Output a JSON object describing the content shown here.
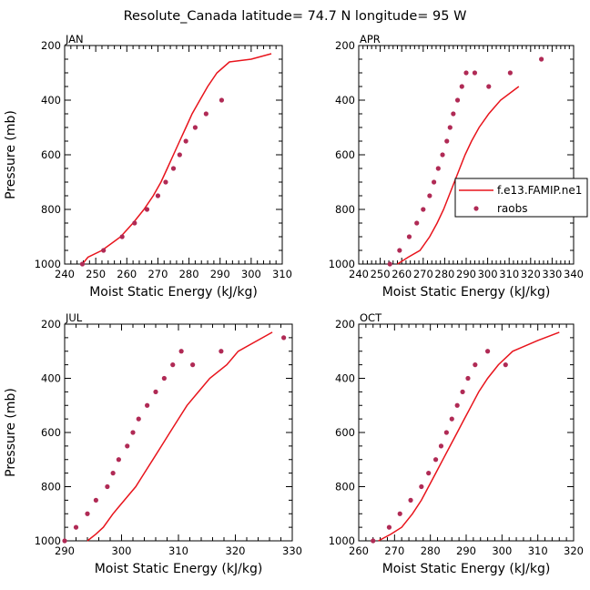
{
  "figure": {
    "title": "Resolute_Canada   latitude= 74.7 N longitude= 95 W"
  },
  "legend": {
    "model_label": "f.e13.FAMIP.ne1",
    "obs_label": "raobs"
  },
  "colors": {
    "model_line": "#e8141c",
    "obs_points": "#b02a55"
  },
  "chart_data": [
    {
      "type": "line",
      "title": "JAN",
      "xlabel": "Moist Static Energy (kJ/kg)",
      "ylabel": "Pressure (mb)",
      "xlim": [
        240,
        310
      ],
      "ylim": [
        1000,
        200
      ],
      "xticks": [
        240,
        250,
        260,
        270,
        280,
        290,
        300,
        310
      ],
      "yticks": [
        200,
        400,
        600,
        800,
        1000
      ],
      "model": {
        "x": [
          245.7,
          247.5,
          252.0,
          258.0,
          262.0,
          265.5,
          268.5,
          271.0,
          273.0,
          275.0,
          277.0,
          279.0,
          281.0,
          283.5,
          286.0,
          289.0,
          293.0,
          300.0,
          306.5
        ],
        "y": [
          1000,
          975,
          950,
          900,
          850,
          800,
          750,
          700,
          650,
          600,
          550,
          500,
          450,
          400,
          350,
          300,
          260,
          250,
          230
        ]
      },
      "obs": {
        "x": [
          245.7,
          252.5,
          258.5,
          262.5,
          266.5,
          270.0,
          272.5,
          275.0,
          277.0,
          279.0,
          282.0,
          285.5,
          290.5
        ],
        "y": [
          1000,
          950,
          900,
          850,
          800,
          750,
          700,
          650,
          600,
          550,
          500,
          450,
          400
        ]
      }
    },
    {
      "type": "line",
      "title": "APR",
      "xlabel": "Moist Static Energy (kJ/kg)",
      "ylabel": "",
      "xlim": [
        240,
        340
      ],
      "ylim": [
        1000,
        200
      ],
      "xticks": [
        240,
        250,
        260,
        270,
        280,
        290,
        300,
        310,
        320,
        330,
        340
      ],
      "yticks": [
        200,
        400,
        600,
        800,
        1000
      ],
      "model": {
        "x": [
          258.0,
          263.0,
          268.5,
          273.0,
          276.5,
          279.5,
          282.0,
          284.5,
          287.0,
          289.5,
          292.5,
          296.0,
          300.5,
          306.0,
          314.5
        ],
        "y": [
          1000,
          975,
          950,
          900,
          850,
          800,
          750,
          700,
          650,
          600,
          550,
          500,
          450,
          400,
          350
        ]
      },
      "obs": {
        "x": [
          254.5,
          259.0,
          263.5,
          267.0,
          270.0,
          273.0,
          275.0,
          277.0,
          279.0,
          281.0,
          282.5,
          284.0,
          286.0,
          288.0,
          290.0,
          294.0,
          300.5,
          310.5,
          325.0
        ],
        "y": [
          1000,
          950,
          900,
          850,
          800,
          750,
          700,
          650,
          600,
          550,
          500,
          450,
          400,
          350,
          300,
          300,
          350,
          300,
          250
        ]
      }
    },
    {
      "type": "line",
      "title": "JUL",
      "xlabel": "Moist Static Energy (kJ/kg)",
      "ylabel": "Pressure (mb)",
      "xlim": [
        290,
        330
      ],
      "ylim": [
        1000,
        200
      ],
      "xticks": [
        290,
        300,
        310,
        320,
        330
      ],
      "yticks": [
        200,
        400,
        600,
        800,
        1000
      ],
      "model": {
        "x": [
          294.0,
          295.5,
          296.8,
          298.5,
          300.5,
          302.5,
          304.0,
          305.5,
          307.0,
          308.5,
          310.0,
          311.5,
          313.5,
          315.5,
          318.5,
          320.5,
          326.5
        ],
        "y": [
          1000,
          975,
          950,
          900,
          850,
          800,
          750,
          700,
          650,
          600,
          550,
          500,
          450,
          400,
          350,
          300,
          230
        ]
      },
      "obs": {
        "x": [
          290.0,
          292.0,
          294.0,
          295.5,
          297.5,
          298.5,
          299.5,
          301.0,
          302.0,
          303.0,
          304.5,
          306.0,
          307.5,
          309.0,
          310.5,
          312.5,
          317.5,
          328.5
        ],
        "y": [
          1000,
          950,
          900,
          850,
          800,
          750,
          700,
          650,
          600,
          550,
          500,
          450,
          400,
          350,
          300,
          350,
          300,
          250
        ]
      }
    },
    {
      "type": "line",
      "title": "OCT",
      "xlabel": "Moist Static Energy (kJ/kg)",
      "ylabel": "",
      "xlim": [
        260,
        320
      ],
      "ylim": [
        1000,
        200
      ],
      "xticks": [
        260,
        270,
        280,
        290,
        300,
        310,
        320
      ],
      "yticks": [
        200,
        400,
        600,
        800,
        1000
      ],
      "model": {
        "x": [
          265.5,
          269.0,
          272.0,
          275.0,
          277.5,
          279.5,
          281.5,
          283.5,
          285.5,
          287.5,
          289.5,
          291.5,
          293.5,
          296.0,
          299.0,
          303.0,
          310.0,
          316.0
        ],
        "y": [
          1000,
          975,
          950,
          900,
          850,
          800,
          750,
          700,
          650,
          600,
          550,
          500,
          450,
          400,
          350,
          300,
          260,
          230
        ]
      },
      "obs": {
        "x": [
          264.0,
          268.5,
          271.5,
          274.5,
          277.5,
          279.5,
          281.5,
          283.0,
          284.5,
          286.0,
          287.5,
          289.0,
          290.5,
          292.5,
          296.0,
          301.0
        ],
        "y": [
          1000,
          950,
          900,
          850,
          800,
          750,
          700,
          650,
          600,
          550,
          500,
          450,
          400,
          350,
          300,
          350
        ]
      }
    }
  ]
}
